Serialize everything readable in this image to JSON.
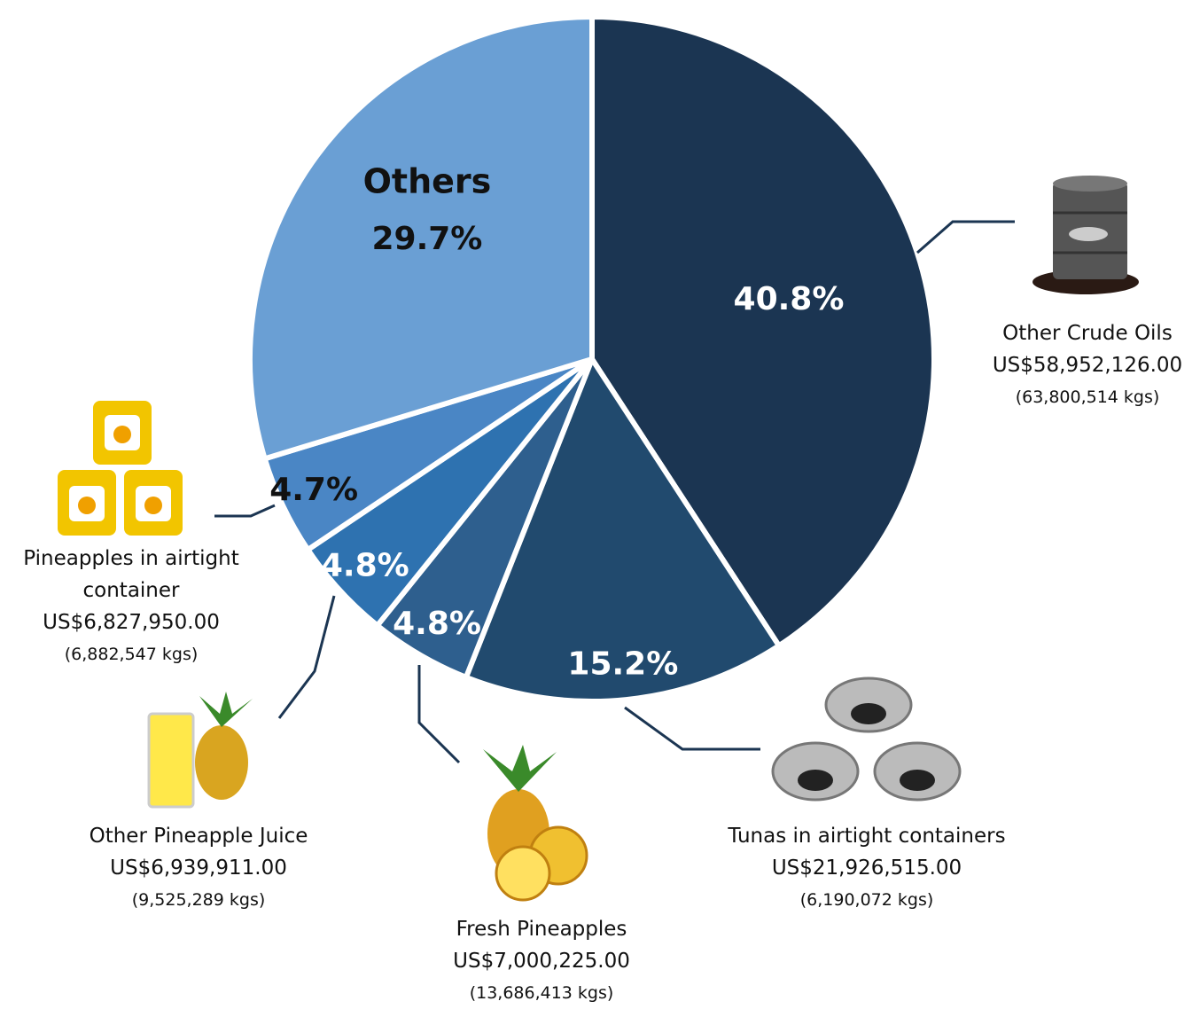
{
  "chart_data": {
    "type": "pie",
    "categories": [
      "Other Crude Oils",
      "Tunas in airtight containers",
      "Fresh Pineapples",
      "Other Pineapple Juice",
      "Pineapples in airtight container",
      "Others"
    ],
    "values": [
      40.8,
      15.2,
      4.8,
      4.8,
      4.7,
      29.7
    ],
    "value_labels": [
      "40.8%",
      "15.2%",
      "4.8%",
      "4.8%",
      "4.7%",
      "29.7%"
    ],
    "amounts": [
      "US$58,952,126.00",
      "US$21,926,515.00",
      "US$7,000,225.00",
      "US$6,939,911.00",
      "US$6,827,950.00",
      null
    ],
    "weights": [
      "(63,800,514 kgs)",
      "(6,190,072 kgs)",
      "(13,686,413 kgs)",
      "(9,525,289 kgs)",
      "(6,882,547 kgs)",
      null
    ],
    "colors": [
      "#1b3552",
      "#214a6e",
      "#2e5f8e",
      "#2e72b0",
      "#4a86c5",
      "#6a9fd4"
    ]
  }
}
